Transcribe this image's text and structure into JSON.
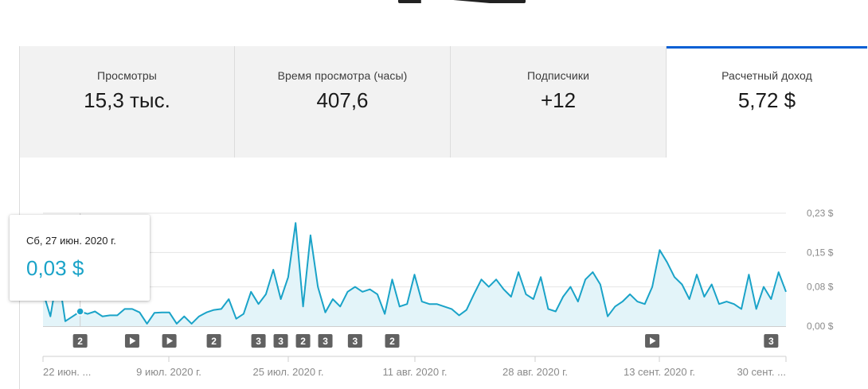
{
  "tabs": [
    {
      "label": "Просмотры",
      "value": "15,3 тыс.",
      "active": false
    },
    {
      "label": "Время просмотра (часы)",
      "value": "407,6",
      "active": false
    },
    {
      "label": "Подписчики",
      "value": "+12",
      "active": false
    },
    {
      "label": "Расчетный доход",
      "value": "5,72 $",
      "active": true
    }
  ],
  "tooltip": {
    "date": "Сб, 27 июн. 2020 г.",
    "value": "0,03 $"
  },
  "colors": {
    "line": "#1aa3c8",
    "fill": "#e3f4f9",
    "accent": "#065fd4",
    "marker": "#616161"
  },
  "chart_data": {
    "type": "area",
    "x_tick_labels": [
      "22 июн. ...",
      "9 июл. 2020 г.",
      "25 июл. 2020 г.",
      "11 авг. 2020 г.",
      "28 авг. 2020 г.",
      "13 сент. 2020 г.",
      "30 сент. ..."
    ],
    "y_tick_labels": [
      "0,00 $",
      "0,08 $",
      "0,15 $",
      "0,23 $"
    ],
    "y_ticks": [
      0,
      0.08,
      0.15,
      0.23
    ],
    "ylim": [
      0,
      0.23
    ],
    "grid": true,
    "x_start": "2020-06-22",
    "values": [
      0.07,
      0.02,
      0.11,
      0.01,
      0.02,
      0.03,
      0.025,
      0.03,
      0.02,
      0.022,
      0.022,
      0.035,
      0.035,
      0.028,
      0.005,
      0.027,
      0.028,
      0.028,
      0.005,
      0.02,
      0.005,
      0.02,
      0.028,
      0.033,
      0.035,
      0.055,
      0.015,
      0.025,
      0.07,
      0.045,
      0.065,
      0.115,
      0.055,
      0.1,
      0.21,
      0.04,
      0.185,
      0.08,
      0.028,
      0.055,
      0.04,
      0.07,
      0.08,
      0.07,
      0.075,
      0.065,
      0.025,
      0.095,
      0.04,
      0.045,
      0.105,
      0.05,
      0.045,
      0.045,
      0.04,
      0.035,
      0.022,
      0.033,
      0.065,
      0.095,
      0.08,
      0.095,
      0.075,
      0.06,
      0.11,
      0.065,
      0.055,
      0.1,
      0.035,
      0.03,
      0.06,
      0.08,
      0.05,
      0.095,
      0.11,
      0.085,
      0.02,
      0.04,
      0.05,
      0.065,
      0.05,
      0.045,
      0.08,
      0.155,
      0.13,
      0.1,
      0.085,
      0.055,
      0.105,
      0.06,
      0.085,
      0.045,
      0.05,
      0.045,
      0.035,
      0.105,
      0.035,
      0.08,
      0.055,
      0.11,
      0.07
    ],
    "highlight": {
      "date": "2020-06-27",
      "value": 0.03
    },
    "markers": [
      {
        "date": "2020-06-27",
        "label": "2"
      },
      {
        "date": "2020-07-04",
        "label": "",
        "icon": "play-icon"
      },
      {
        "date": "2020-07-09",
        "label": "",
        "icon": "play-icon"
      },
      {
        "date": "2020-07-15",
        "label": "2"
      },
      {
        "date": "2020-07-21",
        "label": "3"
      },
      {
        "date": "2020-07-24",
        "label": "3"
      },
      {
        "date": "2020-07-27",
        "label": "2"
      },
      {
        "date": "2020-07-30",
        "label": "3"
      },
      {
        "date": "2020-08-03",
        "label": "3"
      },
      {
        "date": "2020-08-08",
        "label": "2"
      },
      {
        "date": "2020-09-12",
        "label": "",
        "icon": "play-icon"
      },
      {
        "date": "2020-09-28",
        "label": "3"
      }
    ]
  }
}
